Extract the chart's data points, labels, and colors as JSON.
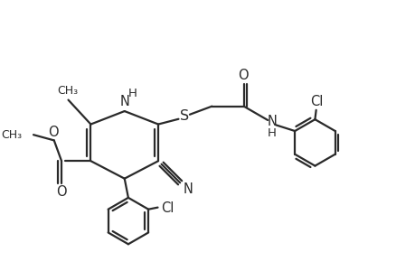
{
  "background_color": "#ffffff",
  "line_color": "#2a2a2a",
  "line_width": 1.6,
  "figsize": [
    4.6,
    3.0
  ],
  "dpi": 100,
  "xlim": [
    0.0,
    9.5
  ],
  "ylim": [
    0.3,
    7.5
  ]
}
